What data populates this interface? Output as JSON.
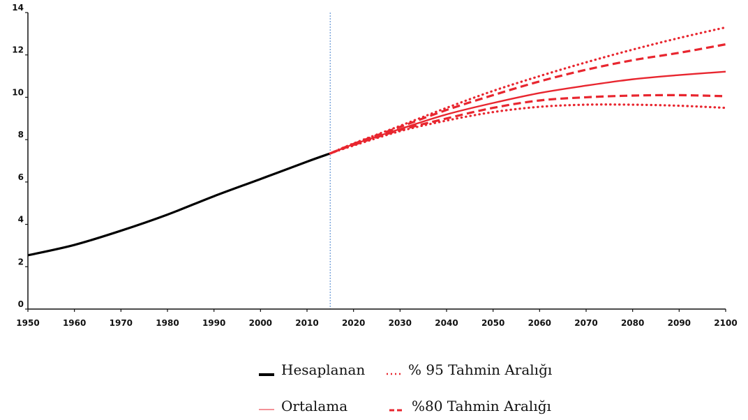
{
  "chart_data": {
    "type": "line",
    "title": "",
    "xlabel": "",
    "ylabel": "",
    "xlim": [
      1950,
      2100
    ],
    "ylim": [
      0,
      14
    ],
    "x_ticks": [
      1950,
      1960,
      1970,
      1980,
      1990,
      2000,
      2010,
      2020,
      2030,
      2040,
      2050,
      2060,
      2070,
      2080,
      2090,
      2100
    ],
    "y_ticks": [
      0,
      2,
      4,
      6,
      8,
      10,
      12,
      14
    ],
    "grid": false,
    "divider_x": 2015,
    "legend_position": "bottom-center",
    "series": [
      {
        "key": "hesaplanan",
        "name": "Hesaplanan",
        "color": "#000000",
        "style": "solid-thick",
        "points": [
          [
            1950,
            2.54
          ],
          [
            1960,
            3.03
          ],
          [
            1970,
            3.7
          ],
          [
            1980,
            4.46
          ],
          [
            1990,
            5.33
          ],
          [
            2000,
            6.14
          ],
          [
            2010,
            6.96
          ],
          [
            2015,
            7.35
          ]
        ]
      },
      {
        "key": "ortalama",
        "name": "Ortalama",
        "color": "#e8262f",
        "style": "solid",
        "points": [
          [
            2015,
            7.35
          ],
          [
            2020,
            7.78
          ],
          [
            2030,
            8.5
          ],
          [
            2040,
            9.19
          ],
          [
            2050,
            9.73
          ],
          [
            2060,
            10.2
          ],
          [
            2070,
            10.55
          ],
          [
            2080,
            10.85
          ],
          [
            2090,
            11.05
          ],
          [
            2100,
            11.21
          ]
        ]
      },
      {
        "key": "pi80_upper",
        "name": "%80 Tahmin Aralığı",
        "color": "#e8262f",
        "style": "dashed",
        "points": [
          [
            2015,
            7.35
          ],
          [
            2020,
            7.8
          ],
          [
            2030,
            8.6
          ],
          [
            2040,
            9.4
          ],
          [
            2050,
            10.1
          ],
          [
            2060,
            10.75
          ],
          [
            2070,
            11.3
          ],
          [
            2080,
            11.75
          ],
          [
            2090,
            12.1
          ],
          [
            2100,
            12.5
          ]
        ]
      },
      {
        "key": "pi80_lower",
        "name": "%80 Tahmin Aralığı",
        "color": "#e8262f",
        "style": "dashed",
        "points": [
          [
            2015,
            7.35
          ],
          [
            2020,
            7.75
          ],
          [
            2030,
            8.45
          ],
          [
            2040,
            9.0
          ],
          [
            2050,
            9.5
          ],
          [
            2060,
            9.85
          ],
          [
            2070,
            10.0
          ],
          [
            2080,
            10.08
          ],
          [
            2090,
            10.1
          ],
          [
            2100,
            10.05
          ]
        ]
      },
      {
        "key": "pi95_upper",
        "name": "% 95 Tahmin Aralığı",
        "color": "#e8262f",
        "style": "dotted",
        "points": [
          [
            2015,
            7.35
          ],
          [
            2020,
            7.82
          ],
          [
            2030,
            8.65
          ],
          [
            2040,
            9.5
          ],
          [
            2050,
            10.3
          ],
          [
            2060,
            11.0
          ],
          [
            2070,
            11.65
          ],
          [
            2080,
            12.25
          ],
          [
            2090,
            12.8
          ],
          [
            2100,
            13.3
          ]
        ]
      },
      {
        "key": "pi95_lower",
        "name": "% 95 Tahmin Aralığı",
        "color": "#e8262f",
        "style": "dotted",
        "points": [
          [
            2015,
            7.35
          ],
          [
            2020,
            7.72
          ],
          [
            2030,
            8.4
          ],
          [
            2040,
            8.9
          ],
          [
            2050,
            9.3
          ],
          [
            2060,
            9.55
          ],
          [
            2070,
            9.65
          ],
          [
            2080,
            9.65
          ],
          [
            2090,
            9.6
          ],
          [
            2100,
            9.5
          ]
        ]
      }
    ]
  },
  "legend": {
    "hesaplanan": "Hesaplanan",
    "pi95": "% 95 Tahmin Aralığı",
    "ortalama": "Ortalama",
    "pi80": "%80 Tahmin Aralığı"
  }
}
